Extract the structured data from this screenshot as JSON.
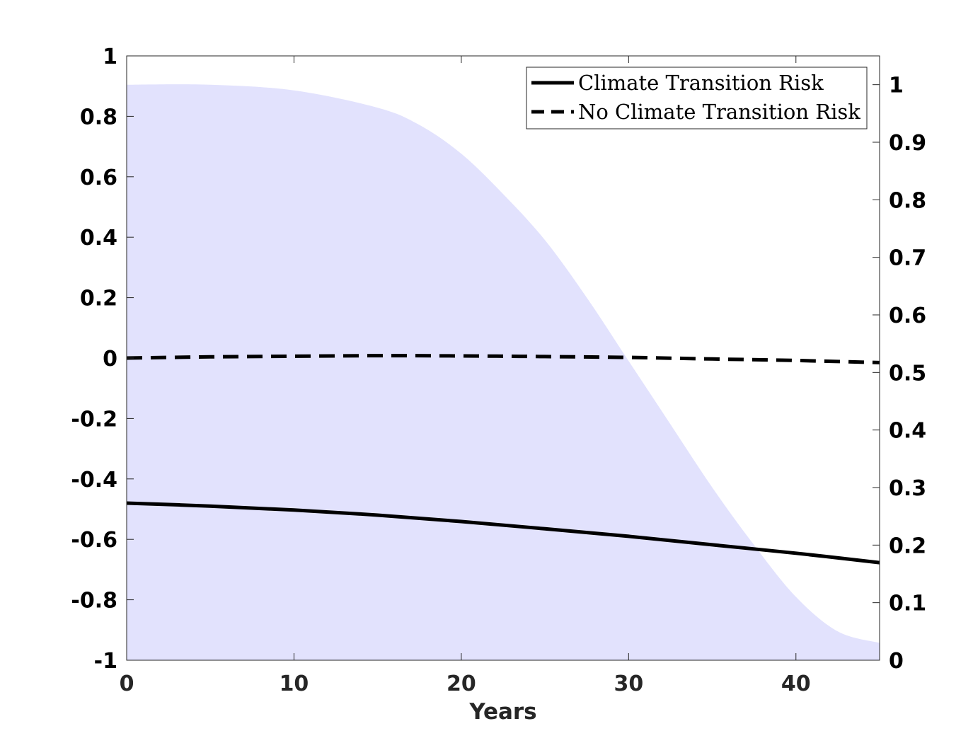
{
  "chart_data": {
    "type": "line",
    "title": "",
    "xlabel": "Years",
    "ylabel": "",
    "xlim": [
      0,
      45
    ],
    "ylim": [
      -1,
      1
    ],
    "y2lim": [
      0,
      1.05
    ],
    "x_ticks": [
      "0",
      "10",
      "20",
      "30",
      "40"
    ],
    "y_ticks": [
      "-1",
      "-0.8",
      "-0.6",
      "-0.4",
      "-0.2",
      "0",
      "0.2",
      "0.4",
      "0.6",
      "0.8",
      "1"
    ],
    "y2_ticks": [
      "0",
      "0.1",
      "0.2",
      "0.3",
      "0.4",
      "0.5",
      "0.6",
      "0.7",
      "0.8",
      "0.9",
      "1"
    ],
    "grid": false,
    "legend_position": "top-right",
    "series": [
      {
        "name": "Climate Transition Risk",
        "axis": "left",
        "style": "solid",
        "color": "#000000",
        "x": [
          0,
          5,
          10,
          15,
          20,
          25,
          30,
          35,
          40,
          45
        ],
        "y": [
          -0.48,
          -0.49,
          -0.503,
          -0.52,
          -0.541,
          -0.565,
          -0.59,
          -0.618,
          -0.646,
          -0.677
        ]
      },
      {
        "name": "No Climate Transition Risk",
        "axis": "left",
        "style": "dashed",
        "color": "#000000",
        "x": [
          0,
          5,
          10,
          15,
          20,
          25,
          30,
          35,
          40,
          45
        ],
        "y": [
          0.0,
          0.004,
          0.006,
          0.008,
          0.007,
          0.005,
          0.002,
          -0.003,
          -0.008,
          -0.015
        ]
      }
    ],
    "shaded_area": {
      "axis": "right",
      "color": "#e2e2fd",
      "x": [
        0,
        5,
        10,
        15,
        17.5,
        20,
        22.5,
        25,
        27.5,
        30,
        32.5,
        35,
        37.5,
        40,
        42.5,
        45
      ],
      "y": [
        1.0,
        1.0,
        0.99,
        0.96,
        0.93,
        0.88,
        0.81,
        0.73,
        0.63,
        0.52,
        0.41,
        0.3,
        0.2,
        0.11,
        0.05,
        0.03
      ]
    }
  }
}
